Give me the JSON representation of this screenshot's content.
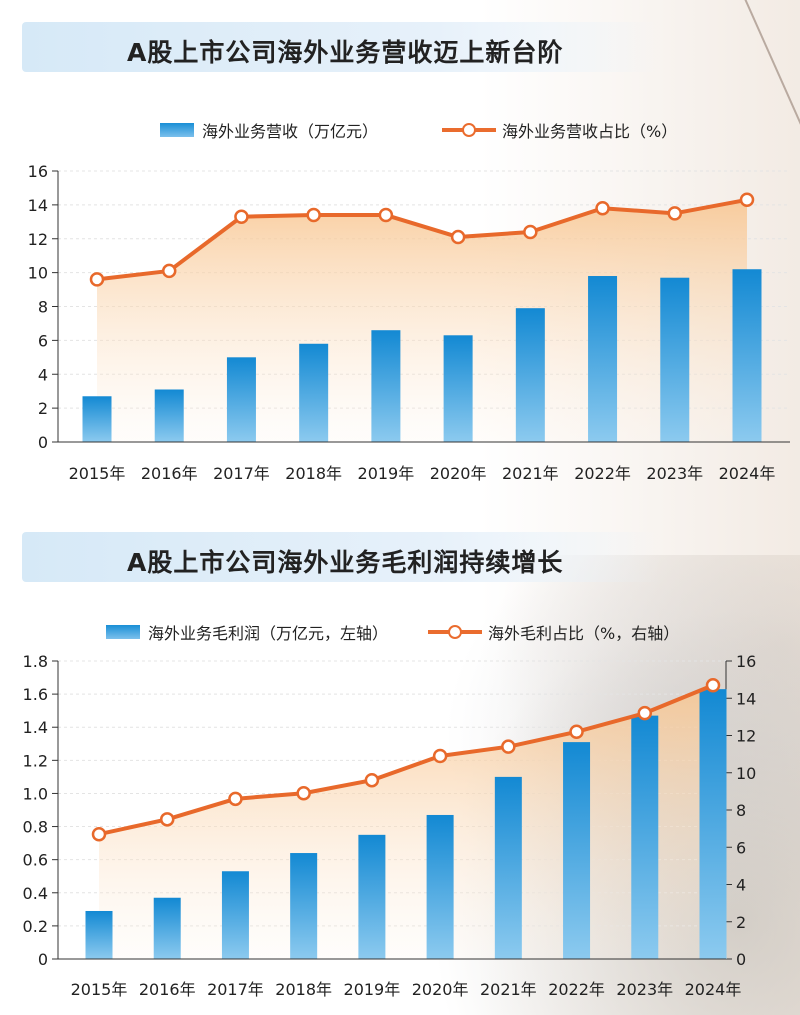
{
  "chart_data": [
    {
      "type": "bar",
      "title": "A股上市公司海外业务营收迈上新台阶",
      "categories": [
        "2015年",
        "2016年",
        "2017年",
        "2018年",
        "2019年",
        "2020年",
        "2021年",
        "2022年",
        "2023年",
        "2024年"
      ],
      "series": [
        {
          "name": "海外业务营收（万亿元）",
          "type": "bar",
          "axis": "left",
          "values": [
            2.7,
            3.1,
            5.0,
            5.8,
            6.6,
            6.3,
            7.9,
            9.8,
            9.7,
            10.2
          ]
        },
        {
          "name": "海外业务营收占比（%）",
          "type": "line",
          "axis": "left",
          "values": [
            9.6,
            10.1,
            13.3,
            13.4,
            13.4,
            12.1,
            12.4,
            13.8,
            13.5,
            14.3
          ]
        }
      ],
      "yticks": [
        "0",
        "2",
        "4",
        "6",
        "8",
        "10",
        "12",
        "14",
        "16"
      ],
      "ylim": [
        0,
        16
      ]
    },
    {
      "type": "bar",
      "title": "A股上市公司海外业务毛利润持续增长",
      "categories": [
        "2015年",
        "2016年",
        "2017年",
        "2018年",
        "2019年",
        "2020年",
        "2021年",
        "2022年",
        "2023年",
        "2024年"
      ],
      "series": [
        {
          "name": "海外业务毛利润（万亿元，左轴）",
          "type": "bar",
          "axis": "left",
          "values": [
            0.29,
            0.37,
            0.53,
            0.64,
            0.75,
            0.87,
            1.1,
            1.31,
            1.47,
            1.63
          ]
        },
        {
          "name": "海外毛利占比（%，右轴）",
          "type": "line",
          "axis": "right",
          "values": [
            6.7,
            7.5,
            8.6,
            8.9,
            9.6,
            10.9,
            11.4,
            12.2,
            13.2,
            14.7
          ]
        }
      ],
      "yticks_left": [
        "0",
        "0.2",
        "0.4",
        "0.6",
        "0.8",
        "1.0",
        "1.2",
        "1.4",
        "1.6",
        "1.8"
      ],
      "yticks_right": [
        "0",
        "2",
        "4",
        "6",
        "8",
        "10",
        "12",
        "14",
        "16"
      ],
      "ylim_left": [
        0,
        1.8
      ],
      "ylim_right": [
        0,
        16
      ]
    }
  ]
}
